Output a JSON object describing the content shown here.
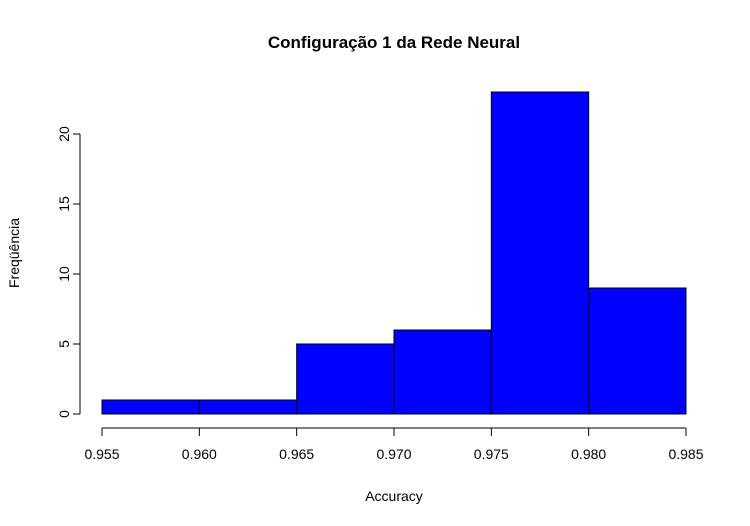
{
  "chart_data": {
    "type": "bar",
    "title": "Configuração 1 da Rede Neural",
    "xlabel": "Accuracy",
    "ylabel": "Freqüência",
    "bins": [
      {
        "from": 0.955,
        "to": 0.96,
        "count": 1
      },
      {
        "from": 0.96,
        "to": 0.965,
        "count": 1
      },
      {
        "from": 0.965,
        "to": 0.97,
        "count": 5
      },
      {
        "from": 0.97,
        "to": 0.975,
        "count": 6
      },
      {
        "from": 0.975,
        "to": 0.98,
        "count": 23
      },
      {
        "from": 0.98,
        "to": 0.985,
        "count": 9
      }
    ],
    "xlim": [
      0.955,
      0.985
    ],
    "ylim": [
      0,
      23
    ],
    "x_ticks": [
      "0.955",
      "0.960",
      "0.965",
      "0.970",
      "0.975",
      "0.980",
      "0.985"
    ],
    "y_ticks": [
      "0",
      "5",
      "10",
      "15",
      "20"
    ],
    "bar_color": "#0000ff",
    "border_color": "#000000",
    "grid": false,
    "legend": "none"
  }
}
